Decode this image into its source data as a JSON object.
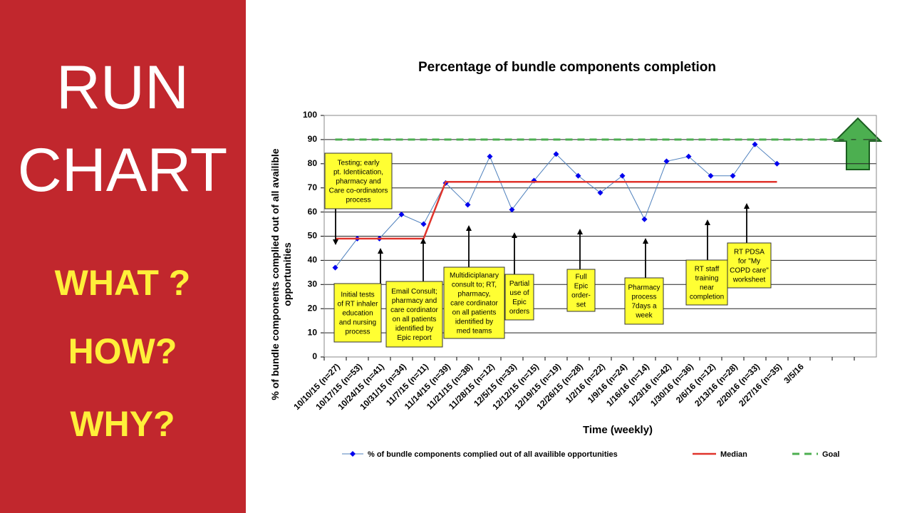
{
  "side_panel": {
    "heading": [
      "RUN",
      "CHART"
    ],
    "questions": [
      "WHAT ?",
      "HOW?",
      "WHY?"
    ]
  },
  "chart_data": {
    "type": "line",
    "title": "Percentage of bundle components completion",
    "x_label": "Time (weekly)",
    "y_label": [
      "% of bundle components complied out of all availible",
      "opportunities"
    ],
    "categories": [
      "10/10/15 (n=27)",
      "10/17/15 (n=53)",
      "10/24/15 (n=41)",
      "10/31/15 (n=34)",
      "11/7/15 (n=11)",
      "11/14/15 (n=39)",
      "11/21/15 (n=38)",
      "11/28/15 (n=12)",
      "12/5/15 (n=33)",
      "12/12/15 (n=15)",
      "12/19/15 (n=19)",
      "12/26/15 (n=28)",
      "1/2/16 (n=22)",
      "1/9/16 (n=24)",
      "1/16/16 (n=14)",
      "1/23/16 (n=42)",
      "1/30/16 (n=36)",
      "2/6/16 (n=12)",
      "2/13/16 (n=28)",
      "2/20/16 (n=33)",
      "2/27/16 (n=35)",
      "3/5/16",
      null,
      null,
      null
    ],
    "series": [
      {
        "name": "% of bundle components complied out of all availible opportunities",
        "color": "#4f81bd",
        "marker_color": "#0000ee",
        "values": [
          37,
          49,
          49,
          59,
          55,
          72,
          63,
          83,
          61,
          73,
          84,
          75,
          68,
          75,
          57,
          81,
          83,
          75,
          75,
          88,
          80,
          null,
          null,
          null,
          null
        ]
      },
      {
        "name": "Median",
        "color": "#e0342c",
        "values": [
          49,
          49,
          49,
          49,
          49,
          72.5,
          72.5,
          72.5,
          72.5,
          72.5,
          72.5,
          72.5,
          72.5,
          72.5,
          72.5,
          72.5,
          72.5,
          72.5,
          72.5,
          72.5,
          72.5,
          null,
          null,
          null,
          null
        ]
      },
      {
        "name": "Goal",
        "color": "#4caf50",
        "dashed": true,
        "values": [
          90,
          90,
          90,
          90,
          90,
          90,
          90,
          90,
          90,
          90,
          90,
          90,
          90,
          90,
          90,
          90,
          90,
          90,
          90,
          90,
          90,
          90,
          90,
          90,
          90
        ]
      }
    ],
    "ylim": [
      0,
      100
    ],
    "yticks": [
      0,
      10,
      20,
      30,
      40,
      50,
      60,
      70,
      80,
      90,
      100
    ],
    "grid": true,
    "legend": "bottom",
    "annotations": [
      {
        "lines": [
          "Testing; early",
          "pt. Identiication,",
          "pharmacy and",
          "Care co-ordinators",
          "process"
        ]
      },
      {
        "lines": [
          "Initial tests",
          "of RT inhaler",
          "education",
          "and nursing",
          "process"
        ]
      },
      {
        "lines": [
          "Email Consult;",
          "pharmacy and",
          "care cordinator",
          "on all patients",
          "identified by",
          "Epic report"
        ]
      },
      {
        "lines": [
          "Multidiciplanary",
          "consult to; RT,",
          "pharmacy,",
          "care cordinator",
          "on all patients",
          "identified by",
          "med teams"
        ]
      },
      {
        "lines": [
          "Partial",
          "use of",
          "Epic",
          "orders"
        ]
      },
      {
        "lines": [
          "Full",
          "Epic",
          "order-",
          "set"
        ]
      },
      {
        "lines": [
          "Pharmacy",
          "process",
          "7days a",
          "week"
        ]
      },
      {
        "lines": [
          "RT staff",
          "training",
          "near",
          "completion"
        ]
      },
      {
        "lines": [
          "RT PDSA",
          "for \"My",
          "COPD care\"",
          "worksheet"
        ]
      }
    ]
  }
}
